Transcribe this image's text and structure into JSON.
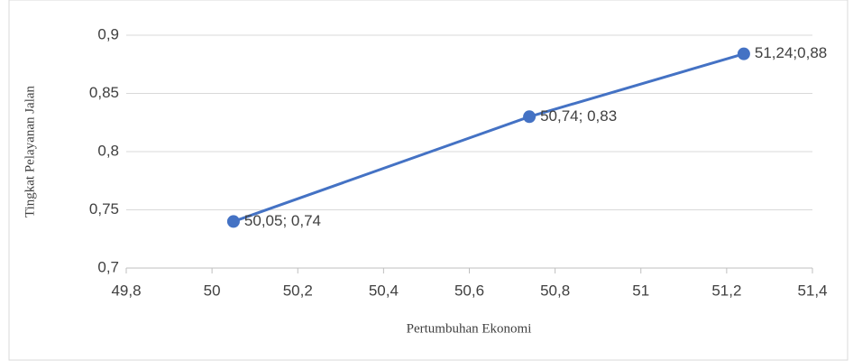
{
  "chart_data": {
    "type": "line",
    "x_label": "Pertumbuhan Ekonomi",
    "y_label": "Tingkat Pelayanan Jalan",
    "x": [
      50.05,
      50.74,
      51.24
    ],
    "series": [
      {
        "color": "#4472c4",
        "values": [
          0.74,
          0.83,
          0.884
        ],
        "value_labels": [
          "50,05; 0,74",
          "50,74; 0,83",
          "51,24;0,88"
        ]
      }
    ],
    "xlim": [
      49.8,
      51.4
    ],
    "xticks": [
      {
        "value": 49.8,
        "label": "49,8"
      },
      50,
      {
        "value": 50.2,
        "label": "50,2"
      },
      {
        "value": 50.4,
        "label": "50,4"
      },
      {
        "value": 50.6,
        "label": "50,6"
      },
      {
        "value": 50.8,
        "label": "50,8"
      },
      51,
      {
        "value": 51.2,
        "label": "51,2"
      },
      {
        "value": 51.4,
        "label": "51,4"
      }
    ],
    "ylim": [
      0.7,
      0.9
    ],
    "yticks": [
      {
        "value": 0.7,
        "label": "0,7"
      },
      {
        "value": 0.75,
        "label": "0,75"
      },
      {
        "value": 0.8,
        "label": "0,8"
      },
      {
        "value": 0.85,
        "label": "0,85"
      },
      {
        "value": 0.9,
        "label": "0,9"
      }
    ],
    "grid": true
  }
}
